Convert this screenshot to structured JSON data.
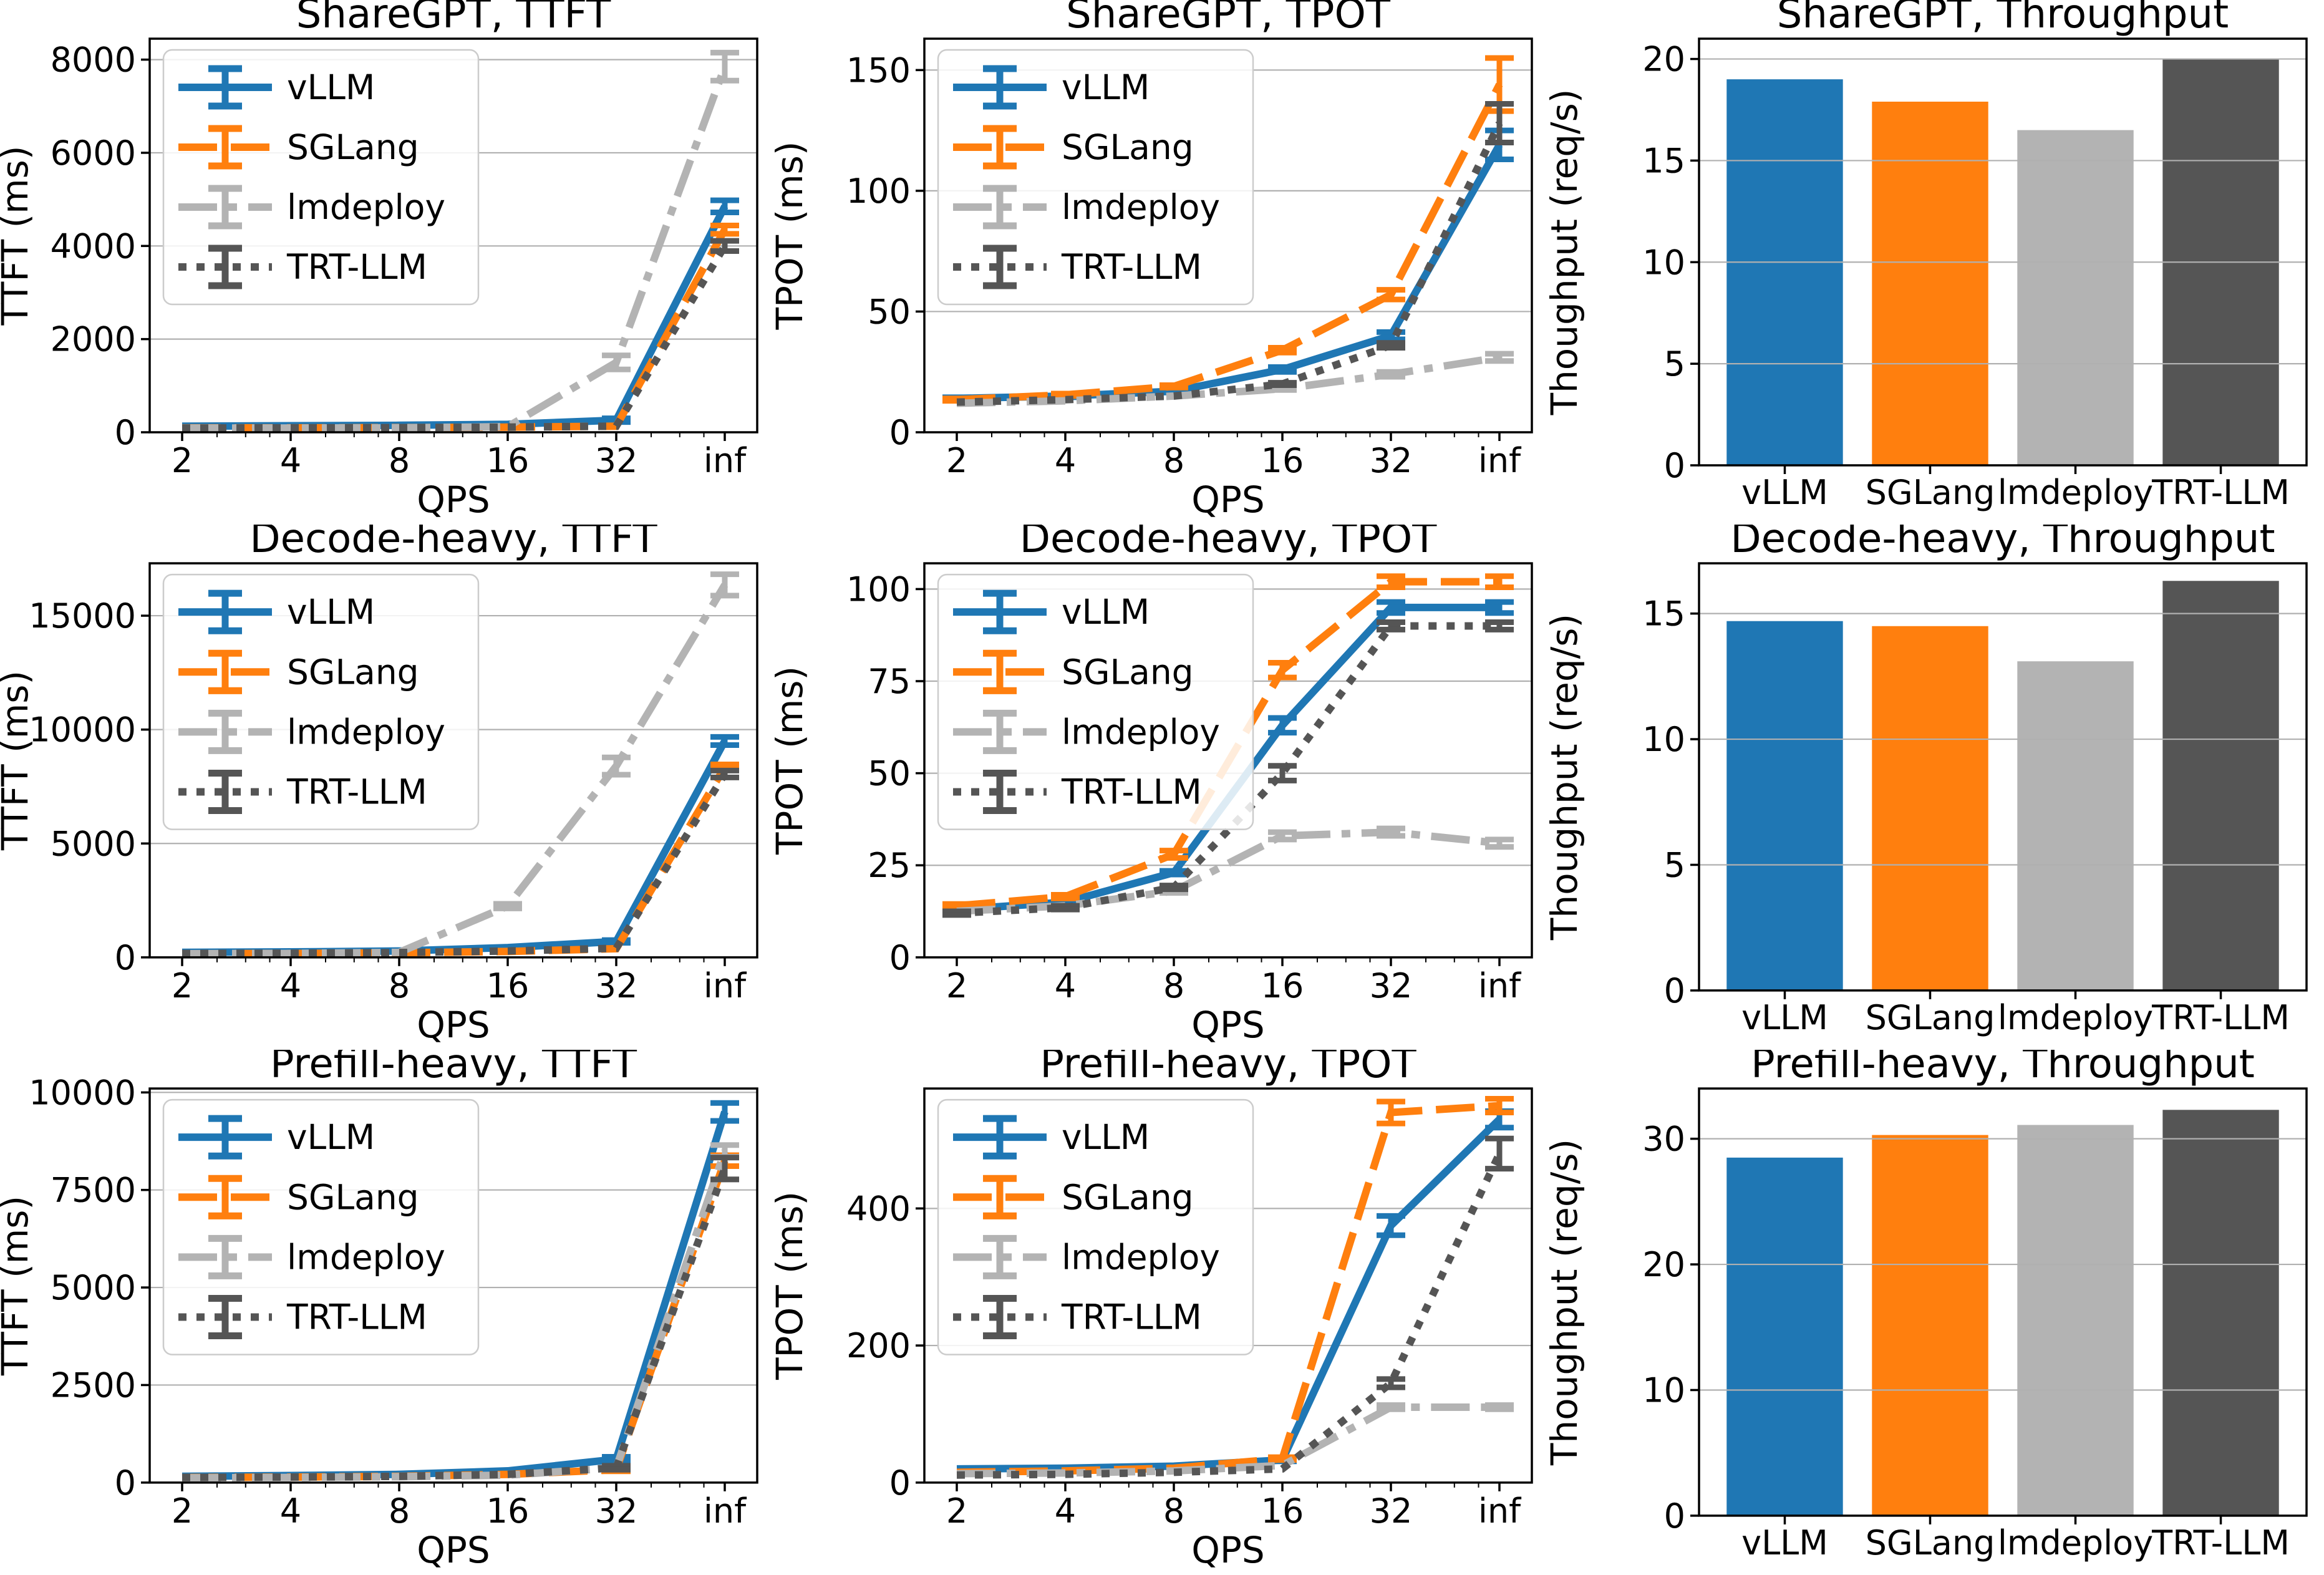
{
  "figure": {
    "background": "#ffffff",
    "grid_color": "#b0b0b0",
    "spine_color": "#000000",
    "text_color": "#000000"
  },
  "engines": [
    "vLLM",
    "SGLang",
    "lmdeploy",
    "TRT-LLM"
  ],
  "colors": {
    "vLLM": "#1f77b4",
    "SGLang": "#ff7f0e",
    "lmdeploy": "#b3b3b3",
    "TRT-LLM": "#555555"
  },
  "chart_data": [
    {
      "id": "sharegpt-ttft",
      "type": "line",
      "title": "ShareGPT, TTFT",
      "xlabel": "QPS",
      "ylabel": "TTFT (ms)",
      "x_categories": [
        "2",
        "4",
        "8",
        "16",
        "32",
        "inf"
      ],
      "ylim": [
        0,
        8450
      ],
      "yticks": [
        0,
        2000,
        4000,
        6000,
        8000
      ],
      "grid": true,
      "legend_position": "upper-left",
      "series": [
        {
          "name": "vLLM",
          "color": "#1f77b4",
          "style": "solid",
          "values": [
            130,
            140,
            150,
            170,
            260,
            4850
          ],
          "errors": [
            0,
            0,
            0,
            0,
            40,
            130
          ]
        },
        {
          "name": "SGLang",
          "color": "#ff7f0e",
          "style": "dashed",
          "values": [
            95,
            95,
            100,
            110,
            130,
            4350
          ],
          "errors": [
            0,
            0,
            0,
            0,
            0,
            90
          ]
        },
        {
          "name": "lmdeploy",
          "color": "#b3b3b3",
          "style": "dashdot",
          "values": [
            90,
            90,
            95,
            120,
            1500,
            7850
          ],
          "errors": [
            0,
            0,
            0,
            0,
            150,
            300
          ]
        },
        {
          "name": "TRT-LLM",
          "color": "#555555",
          "style": "dotted",
          "values": [
            90,
            95,
            100,
            110,
            130,
            4000
          ],
          "errors": [
            0,
            0,
            0,
            0,
            0,
            110
          ]
        }
      ]
    },
    {
      "id": "sharegpt-tpot",
      "type": "line",
      "title": "ShareGPT, TPOT",
      "xlabel": "QPS",
      "ylabel": "TPOT (ms)",
      "x_categories": [
        "2",
        "4",
        "8",
        "16",
        "32",
        "inf"
      ],
      "ylim": [
        0,
        163
      ],
      "yticks": [
        0,
        50,
        100,
        150
      ],
      "grid": true,
      "legend_position": "upper-left",
      "series": [
        {
          "name": "vLLM",
          "color": "#1f77b4",
          "style": "solid",
          "values": [
            14,
            15,
            17,
            26,
            40,
            119
          ],
          "errors": [
            0.5,
            0.5,
            0.5,
            1,
            1.5,
            6
          ]
        },
        {
          "name": "SGLang",
          "color": "#ff7f0e",
          "style": "dashed",
          "values": [
            13.5,
            15.5,
            19,
            34,
            57,
            144
          ],
          "errors": [
            0.5,
            0.5,
            0.5,
            1,
            2,
            11
          ]
        },
        {
          "name": "lmdeploy",
          "color": "#b3b3b3",
          "style": "dashdot",
          "values": [
            12,
            13,
            15,
            18,
            24,
            31
          ],
          "errors": [
            0,
            0,
            0,
            0.5,
            1,
            1.5
          ]
        },
        {
          "name": "TRT-LLM",
          "color": "#555555",
          "style": "dotted",
          "values": [
            12.5,
            13.5,
            15,
            20,
            36,
            128
          ],
          "errors": [
            0,
            0,
            0,
            0.5,
            1,
            8
          ]
        }
      ]
    },
    {
      "id": "sharegpt-throughput",
      "type": "bar",
      "title": "ShareGPT, Throughput",
      "ylabel": "Thoughput (req/s)",
      "categories": [
        "vLLM",
        "SGLang",
        "lmdeploy",
        "TRT-LLM"
      ],
      "values": [
        19.0,
        17.9,
        16.5,
        20.0
      ],
      "bar_colors": [
        "#1f77b4",
        "#ff7f0e",
        "#b3b3b3",
        "#555555"
      ],
      "ylim": [
        0,
        21
      ],
      "yticks": [
        0,
        5,
        10,
        15,
        20
      ],
      "grid": true
    },
    {
      "id": "decode-heavy-ttft",
      "type": "line",
      "title": "Decode-heavy, TTFT",
      "xlabel": "QPS",
      "ylabel": "TTFT (ms)",
      "x_categories": [
        "2",
        "4",
        "8",
        "16",
        "32",
        "inf"
      ],
      "ylim": [
        0,
        17300
      ],
      "yticks": [
        0,
        5000,
        10000,
        15000
      ],
      "grid": true,
      "legend_position": "upper-left",
      "series": [
        {
          "name": "vLLM",
          "color": "#1f77b4",
          "style": "solid",
          "values": [
            220,
            240,
            280,
            430,
            700,
            9500
          ],
          "errors": [
            0,
            0,
            0,
            0,
            60,
            180
          ]
        },
        {
          "name": "SGLang",
          "color": "#ff7f0e",
          "style": "dashed",
          "values": [
            160,
            170,
            200,
            260,
            380,
            8350
          ],
          "errors": [
            0,
            0,
            0,
            0,
            0,
            120
          ]
        },
        {
          "name": "lmdeploy",
          "color": "#b3b3b3",
          "style": "dashdot",
          "values": [
            160,
            170,
            220,
            2250,
            8400,
            16350
          ],
          "errors": [
            0,
            0,
            0,
            100,
            380,
            470
          ]
        },
        {
          "name": "TRT-LLM",
          "color": "#555555",
          "style": "dotted",
          "values": [
            170,
            180,
            210,
            280,
            400,
            8050
          ],
          "errors": [
            0,
            0,
            0,
            0,
            0,
            150
          ]
        }
      ]
    },
    {
      "id": "decode-heavy-tpot",
      "type": "line",
      "title": "Decode-heavy, TPOT",
      "xlabel": "QPS",
      "ylabel": "TPOT (ms)",
      "x_categories": [
        "2",
        "4",
        "8",
        "16",
        "32",
        "inf"
      ],
      "ylim": [
        0,
        107
      ],
      "yticks": [
        0,
        25,
        50,
        75,
        100
      ],
      "grid": true,
      "legend_position": "upper-left",
      "series": [
        {
          "name": "vLLM",
          "color": "#1f77b4",
          "style": "solid",
          "values": [
            13,
            15,
            23,
            63,
            95,
            95
          ],
          "errors": [
            0.5,
            0.5,
            0.5,
            2,
            1.5,
            1.5
          ]
        },
        {
          "name": "SGLang",
          "color": "#ff7f0e",
          "style": "dashed",
          "values": [
            14,
            16.5,
            28,
            78,
            102,
            102
          ],
          "errors": [
            0.5,
            0.5,
            1,
            2,
            1.5,
            1.5
          ]
        },
        {
          "name": "lmdeploy",
          "color": "#b3b3b3",
          "style": "dashdot",
          "values": [
            12.5,
            14,
            18,
            33,
            34,
            31
          ],
          "errors": [
            0,
            0,
            0.5,
            1,
            1,
            1
          ]
        },
        {
          "name": "TRT-LLM",
          "color": "#555555",
          "style": "dotted",
          "values": [
            12,
            13.5,
            19,
            50,
            90,
            90
          ],
          "errors": [
            0.5,
            0.5,
            0.5,
            2,
            1,
            1
          ]
        }
      ]
    },
    {
      "id": "decode-heavy-throughput",
      "type": "bar",
      "title": "Decode-heavy, Throughput",
      "ylabel": "Thoughput (req/s)",
      "categories": [
        "vLLM",
        "SGLang",
        "lmdeploy",
        "TRT-LLM"
      ],
      "values": [
        14.7,
        14.5,
        13.1,
        16.3
      ],
      "bar_colors": [
        "#1f77b4",
        "#ff7f0e",
        "#b3b3b3",
        "#555555"
      ],
      "ylim": [
        0,
        17
      ],
      "yticks": [
        0,
        5,
        10,
        15
      ],
      "grid": true
    },
    {
      "id": "prefill-heavy-ttft",
      "type": "line",
      "title": "Prefill-heavy, TTFT",
      "xlabel": "QPS",
      "ylabel": "TTFT (ms)",
      "x_categories": [
        "2",
        "4",
        "8",
        "16",
        "32",
        "inf"
      ],
      "ylim": [
        0,
        10100
      ],
      "yticks": [
        0,
        2500,
        5000,
        7500,
        10000
      ],
      "grid": true,
      "legend_position": "upper-left",
      "series": [
        {
          "name": "vLLM",
          "color": "#1f77b4",
          "style": "solid",
          "values": [
            160,
            180,
            210,
            300,
            600,
            9500
          ],
          "errors": [
            0,
            0,
            0,
            0,
            60,
            230
          ]
        },
        {
          "name": "SGLang",
          "color": "#ff7f0e",
          "style": "dashed",
          "values": [
            130,
            140,
            160,
            210,
            330,
            8250
          ],
          "errors": [
            0,
            0,
            0,
            0,
            40,
            140
          ]
        },
        {
          "name": "lmdeploy",
          "color": "#b3b3b3",
          "style": "dashdot",
          "values": [
            120,
            130,
            150,
            190,
            380,
            8500
          ],
          "errors": [
            0,
            0,
            0,
            0,
            40,
            150
          ]
        },
        {
          "name": "TRT-LLM",
          "color": "#555555",
          "style": "dotted",
          "values": [
            130,
            140,
            160,
            210,
            380,
            8050
          ],
          "errors": [
            0,
            0,
            0,
            0,
            50,
            280
          ]
        }
      ]
    },
    {
      "id": "prefill-heavy-tpot",
      "type": "line",
      "title": "Prefill-heavy, TPOT",
      "xlabel": "QPS",
      "ylabel": "TPOT (ms)",
      "x_categories": [
        "2",
        "4",
        "8",
        "16",
        "32",
        "inf"
      ],
      "ylim": [
        0,
        575
      ],
      "yticks": [
        0,
        200,
        400
      ],
      "grid": true,
      "legend_position": "upper-left",
      "series": [
        {
          "name": "vLLM",
          "color": "#1f77b4",
          "style": "solid",
          "values": [
            20,
            21,
            24,
            33,
            375,
            530
          ],
          "errors": [
            1,
            1,
            1,
            2,
            14,
            12
          ]
        },
        {
          "name": "SGLang",
          "color": "#ff7f0e",
          "style": "dashed",
          "values": [
            15,
            17,
            21,
            35,
            540,
            550
          ],
          "errors": [
            1,
            1,
            1,
            2,
            16,
            10
          ]
        },
        {
          "name": "lmdeploy",
          "color": "#b3b3b3",
          "style": "dashdot",
          "values": [
            13,
            14,
            17,
            25,
            110,
            110
          ],
          "errors": [
            0.5,
            0.5,
            0.5,
            1,
            3,
            3
          ]
        },
        {
          "name": "TRT-LLM",
          "color": "#555555",
          "style": "dotted",
          "values": [
            11,
            12,
            15,
            20,
            145,
            480
          ],
          "errors": [
            0.5,
            0.5,
            0.5,
            1,
            6,
            22
          ]
        }
      ]
    },
    {
      "id": "prefill-heavy-throughput",
      "type": "bar",
      "title": "Prefill-heavy, Throughput",
      "ylabel": "Thoughput (req/s)",
      "categories": [
        "vLLM",
        "SGLang",
        "lmdeploy",
        "TRT-LLM"
      ],
      "values": [
        28.5,
        30.3,
        31.1,
        32.3
      ],
      "bar_colors": [
        "#1f77b4",
        "#ff7f0e",
        "#b3b3b3",
        "#555555"
      ],
      "ylim": [
        0,
        34
      ],
      "yticks": [
        0,
        10,
        20,
        30
      ],
      "grid": true
    }
  ]
}
